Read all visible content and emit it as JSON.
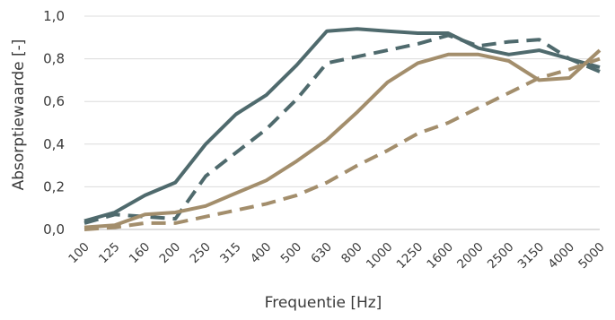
{
  "chart_data": {
    "type": "line",
    "xlabel": "Frequentie [Hz]",
    "ylabel": "Absorptiewaarde [-]",
    "categories": [
      "100",
      "125",
      "160",
      "200",
      "250",
      "315",
      "400",
      "500",
      "630",
      "800",
      "1000",
      "1250",
      "1600",
      "2000",
      "2500",
      "3150",
      "4000",
      "5000"
    ],
    "ylim": [
      0,
      1.0
    ],
    "yticks": [
      "0,0",
      "0,2",
      "0,4",
      "0,6",
      "0,8",
      "1,0"
    ],
    "grid": "horizontal",
    "legend": "none",
    "series": [
      {
        "color": "#4f6a6d",
        "dash": "solid",
        "values": [
          0.04,
          0.08,
          0.16,
          0.22,
          0.4,
          0.54,
          0.63,
          0.77,
          0.93,
          0.94,
          0.93,
          0.92,
          0.92,
          0.85,
          0.82,
          0.84,
          0.8,
          0.76
        ]
      },
      {
        "color": "#4f6a6d",
        "dash": "dashed",
        "values": [
          0.03,
          0.07,
          0.06,
          0.05,
          0.25,
          0.36,
          0.47,
          0.61,
          0.78,
          0.81,
          0.84,
          0.87,
          0.91,
          0.86,
          0.88,
          0.89,
          0.8,
          0.74
        ]
      },
      {
        "color": "#a38e6c",
        "dash": "solid",
        "values": [
          0.01,
          0.02,
          0.07,
          0.08,
          0.11,
          0.17,
          0.23,
          0.32,
          0.42,
          0.55,
          0.69,
          0.78,
          0.82,
          0.82,
          0.79,
          0.7,
          0.71,
          0.84
        ]
      },
      {
        "color": "#a38e6c",
        "dash": "dashed",
        "values": [
          0.0,
          0.01,
          0.03,
          0.03,
          0.06,
          0.09,
          0.12,
          0.16,
          0.22,
          0.3,
          0.37,
          0.45,
          0.5,
          0.57,
          0.64,
          0.71,
          0.75,
          0.8
        ]
      }
    ]
  }
}
